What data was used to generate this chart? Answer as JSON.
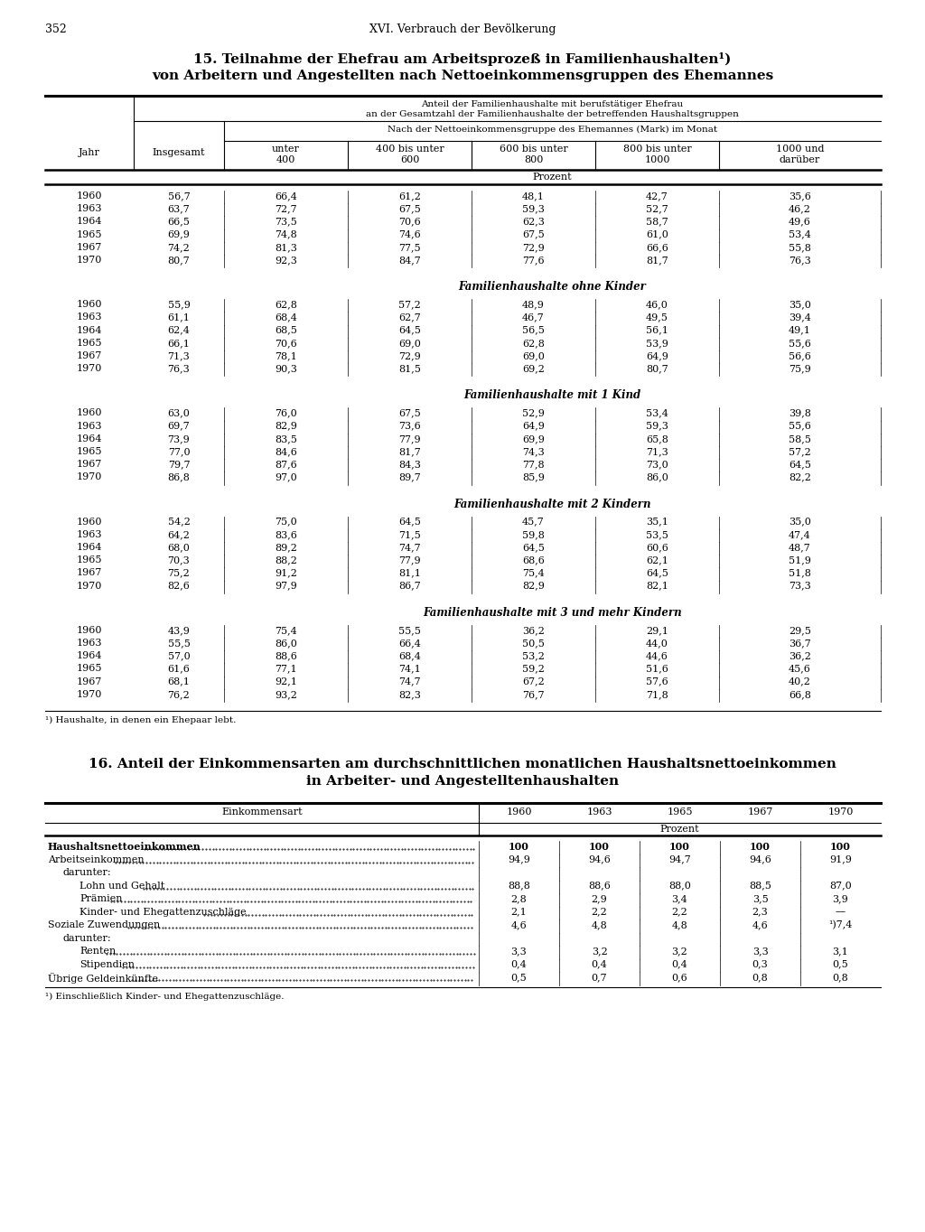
{
  "page_num": "352",
  "header": "XVI. Verbrauch der Bevölkerung",
  "title1": "15. Teilnahme der Ehefrau am Arbeitsprozeß in Familienhaushalten¹)",
  "title2": "von Arbeitern und Angestellten nach Nettoeinkommensgruppen des Ehemannes",
  "col_header_span1": "Anteil der Familienhaushalte mit berufstätiger Ehefrau",
  "col_header_span2": "an der Gesamtzahl der Familienhaushalte der betreffenden Haushaltsgruppen",
  "col_header2": "Nach der Nettoeinkommensgruppe des Ehemannes (Mark) im Monat",
  "col_jahr": "Jahr",
  "col_insgesamt": "Insgesamt",
  "col1a": "unter",
  "col1b": "400",
  "col2a": "400 bis unter",
  "col2b": "600",
  "col3a": "600 bis unter",
  "col3b": "800",
  "col4a": "800 bis unter",
  "col4b": "1000",
  "col5a": "1000 und",
  "col5b": "darüber",
  "prozent": "Prozent",
  "section_labels": [
    "",
    "Familienhaushalte ohne Kinder",
    "Familienhaushalte mit 1 Kind",
    "Familienhaushalte mit 2 Kindern",
    "Familienhaushalte mit 3 und mehr Kindern"
  ],
  "footnote1": "¹) Haushalte, in denen ein Ehepaar lebt.",
  "years": [
    "1960",
    "1963",
    "1964",
    "1965",
    "1967",
    "1970"
  ],
  "sections": [
    [
      [
        "56,7",
        "66,4",
        "61,2",
        "48,1",
        "42,7",
        "35,6"
      ],
      [
        "63,7",
        "72,7",
        "67,5",
        "59,3",
        "52,7",
        "46,2"
      ],
      [
        "66,5",
        "73,5",
        "70,6",
        "62,3",
        "58,7",
        "49,6"
      ],
      [
        "69,9",
        "74,8",
        "74,6",
        "67,5",
        "61,0",
        "53,4"
      ],
      [
        "74,2",
        "81,3",
        "77,5",
        "72,9",
        "66,6",
        "55,8"
      ],
      [
        "80,7",
        "92,3",
        "84,7",
        "77,6",
        "81,7",
        "76,3"
      ]
    ],
    [
      [
        "55,9",
        "62,8",
        "57,2",
        "48,9",
        "46,0",
        "35,0"
      ],
      [
        "61,1",
        "68,4",
        "62,7",
        "46,7",
        "49,5",
        "39,4"
      ],
      [
        "62,4",
        "68,5",
        "64,5",
        "56,5",
        "56,1",
        "49,1"
      ],
      [
        "66,1",
        "70,6",
        "69,0",
        "62,8",
        "53,9",
        "55,6"
      ],
      [
        "71,3",
        "78,1",
        "72,9",
        "69,0",
        "64,9",
        "56,6"
      ],
      [
        "76,3",
        "90,3",
        "81,5",
        "69,2",
        "80,7",
        "75,9"
      ]
    ],
    [
      [
        "63,0",
        "76,0",
        "67,5",
        "52,9",
        "53,4",
        "39,8"
      ],
      [
        "69,7",
        "82,9",
        "73,6",
        "64,9",
        "59,3",
        "55,6"
      ],
      [
        "73,9",
        "83,5",
        "77,9",
        "69,9",
        "65,8",
        "58,5"
      ],
      [
        "77,0",
        "84,6",
        "81,7",
        "74,3",
        "71,3",
        "57,2"
      ],
      [
        "79,7",
        "87,6",
        "84,3",
        "77,8",
        "73,0",
        "64,5"
      ],
      [
        "86,8",
        "97,0",
        "89,7",
        "85,9",
        "86,0",
        "82,2"
      ]
    ],
    [
      [
        "54,2",
        "75,0",
        "64,5",
        "45,7",
        "35,1",
        "35,0"
      ],
      [
        "64,2",
        "83,6",
        "71,5",
        "59,8",
        "53,5",
        "47,4"
      ],
      [
        "68,0",
        "89,2",
        "74,7",
        "64,5",
        "60,6",
        "48,7"
      ],
      [
        "70,3",
        "88,2",
        "77,9",
        "68,6",
        "62,1",
        "51,9"
      ],
      [
        "75,2",
        "91,2",
        "81,1",
        "75,4",
        "64,5",
        "51,8"
      ],
      [
        "82,6",
        "97,9",
        "86,7",
        "82,9",
        "82,1",
        "73,3"
      ]
    ],
    [
      [
        "43,9",
        "75,4",
        "55,5",
        "36,2",
        "29,1",
        "29,5"
      ],
      [
        "55,5",
        "86,0",
        "66,4",
        "50,5",
        "44,0",
        "36,7"
      ],
      [
        "57,0",
        "88,6",
        "68,4",
        "53,2",
        "44,6",
        "36,2"
      ],
      [
        "61,6",
        "77,1",
        "74,1",
        "59,2",
        "51,6",
        "45,6"
      ],
      [
        "68,1",
        "92,1",
        "74,7",
        "67,2",
        "57,6",
        "40,2"
      ],
      [
        "76,2",
        "93,2",
        "82,3",
        "76,7",
        "71,8",
        "66,8"
      ]
    ]
  ],
  "title16a": "16. Anteil der Einkommensarten am durchschnittlichen monatlichen Haushaltsnettoeinkommen",
  "title16b": "in Arbeiter- und Angestelltenhaushalten",
  "t16_col_label": "Einkommensart",
  "t16_years": [
    "1960",
    "1963",
    "1965",
    "1967",
    "1970"
  ],
  "t16_prozent": "Prozent",
  "t16_rows": [
    {
      "text": "Haushaltsnettoeinkommen",
      "indent": 0,
      "bold": true,
      "vals": [
        "100",
        "100",
        "100",
        "100",
        "100"
      ]
    },
    {
      "text": "Arbeitseinkommen",
      "indent": 0,
      "bold": false,
      "vals": [
        "94,9",
        "94,6",
        "94,7",
        "94,6",
        "91,9"
      ]
    },
    {
      "text": "darunter:",
      "indent": 1,
      "bold": false,
      "vals": [
        "",
        "",
        "",
        "",
        ""
      ]
    },
    {
      "text": "Lohn und Gehalt",
      "indent": 2,
      "bold": false,
      "vals": [
        "88,8",
        "88,6",
        "88,0",
        "88,5",
        "87,0"
      ]
    },
    {
      "text": "Prämien",
      "indent": 2,
      "bold": false,
      "vals": [
        "2,8",
        "2,9",
        "3,4",
        "3,5",
        "3,9"
      ]
    },
    {
      "text": "Kinder- und Ehegattenzuschläge",
      "indent": 2,
      "bold": false,
      "vals": [
        "2,1",
        "2,2",
        "2,2",
        "2,3",
        "—"
      ]
    },
    {
      "text": "Soziale Zuwendungen",
      "indent": 0,
      "bold": false,
      "vals": [
        "4,6",
        "4,8",
        "4,8",
        "4,6",
        "¹)7,4"
      ]
    },
    {
      "text": "darunter:",
      "indent": 1,
      "bold": false,
      "vals": [
        "",
        "",
        "",
        "",
        ""
      ]
    },
    {
      "text": "Renten",
      "indent": 2,
      "bold": false,
      "vals": [
        "3,3",
        "3,2",
        "3,2",
        "3,3",
        "3,1"
      ]
    },
    {
      "text": "Stipendien",
      "indent": 2,
      "bold": false,
      "vals": [
        "0,4",
        "0,4",
        "0,4",
        "0,3",
        "0,5"
      ]
    },
    {
      "Übrige Geldeinkünfte_key": true,
      "text": "Übrige Geldeinkünfte",
      "indent": 0,
      "bold": false,
      "vals": [
        "0,5",
        "0,7",
        "0,6",
        "0,8",
        "0,8"
      ]
    }
  ],
  "t16_footnote": "¹) Einschließlich Kinder- und Ehegattenzuschläge."
}
